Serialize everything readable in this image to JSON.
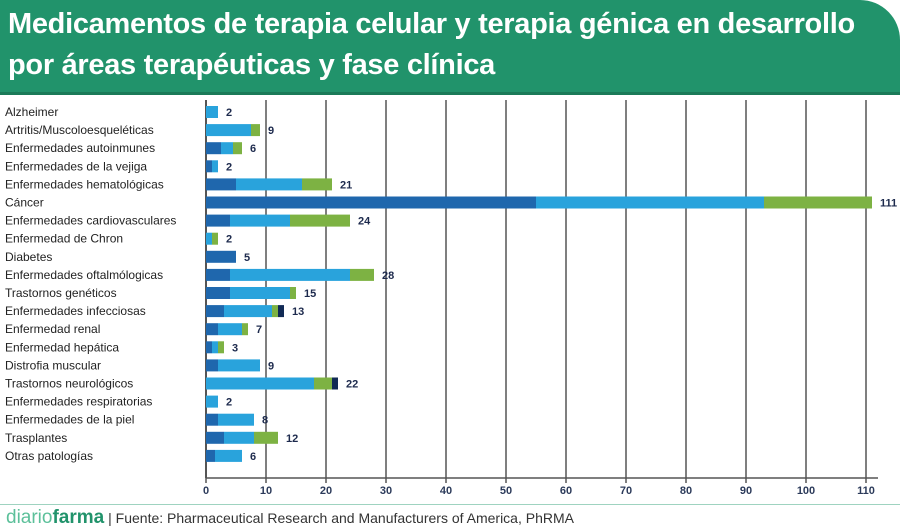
{
  "header": {
    "title": "Medicamentos de terapia celular y terapia génica en desarrollo por áreas terapéuticas y fase clínica"
  },
  "footer": {
    "brand_part1": "diario",
    "brand_part2": "farma",
    "separator": "|",
    "source": "Fuente:  Pharmaceutical Research and Manufacturers of America, PhRMA"
  },
  "colors": {
    "header": "#21936b",
    "segment_1": "#1f67ad",
    "segment_2": "#29a3dc",
    "segment_3": "#7db243",
    "segment_4": "#112a55"
  },
  "chart_data": {
    "type": "bar",
    "orientation": "horizontal",
    "stacked": true,
    "categories": [
      "Alzheimer",
      "Artritis/Muscoloesqueléticas",
      "Enfermedades autoinmunes",
      "Enfermedades de la vejiga",
      "Enfermedades hematológicas",
      "Cáncer",
      "Enfermedades cardiovasculares",
      "Enfermedad de Chron",
      "Diabetes",
      "Enfermedades oftalmólogicas",
      "Trastornos genéticos",
      "Enfermedades infecciosas",
      "Enfermedad renal",
      "Enfermedad hepática",
      "Distrofia muscular",
      "Trastornos neurológicos",
      "Enfermedades respiratorias",
      "Enfermedades de la piel",
      "Trasplantes",
      "Otras patologías"
    ],
    "series": [
      {
        "color": "#1f67ad",
        "values": [
          0,
          0,
          2.5,
          1,
          5,
          55,
          4,
          0,
          5,
          4,
          4,
          3,
          2,
          1,
          2,
          0,
          0,
          2,
          3,
          1.5
        ]
      },
      {
        "color": "#29a3dc",
        "values": [
          2,
          7.5,
          2,
          1,
          11,
          38,
          10,
          1,
          0,
          20,
          10,
          8,
          4,
          1,
          7,
          18,
          2,
          6,
          5,
          4.5
        ]
      },
      {
        "color": "#7db243",
        "values": [
          0,
          1.5,
          1.5,
          0,
          5,
          18,
          10,
          1,
          0,
          4,
          1,
          1,
          1,
          1,
          0,
          3,
          0,
          0,
          4,
          0
        ]
      },
      {
        "color": "#112a55",
        "values": [
          0,
          0,
          0,
          0,
          0,
          0,
          0,
          0,
          0,
          0,
          0,
          1,
          0,
          0,
          0,
          1,
          0,
          0,
          0,
          0
        ]
      }
    ],
    "totals": [
      2,
      9,
      6,
      2,
      21,
      111,
      24,
      2,
      5,
      28,
      15,
      13,
      7,
      3,
      9,
      22,
      2,
      8,
      12,
      6
    ],
    "xticks": [
      0,
      10,
      20,
      30,
      40,
      50,
      60,
      70,
      80,
      90,
      100,
      110
    ],
    "xlim": [
      0,
      112
    ],
    "grid": true,
    "legend": "none"
  }
}
